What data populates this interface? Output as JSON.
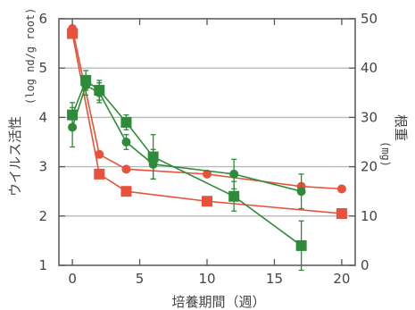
{
  "chart_data": {
    "type": "line",
    "xlabel": "培養期間（週）",
    "ylabel_left": "ウイルス活性",
    "ylabel_left_unit": "(log nd/g root)",
    "ylabel_right": "根重",
    "ylabel_right_unit": "(mg)",
    "xlim": [
      -1,
      21
    ],
    "ylim_left": [
      1,
      6
    ],
    "ylim_right": [
      0,
      50
    ],
    "x_ticks": [
      "0",
      "5",
      "10",
      "15",
      "20"
    ],
    "y_left_ticks": [
      "1",
      "2",
      "3",
      "4",
      "5",
      "6"
    ],
    "y_right_ticks": [
      "0",
      "10",
      "20",
      "30",
      "40",
      "50"
    ],
    "grid": "horizontal",
    "colors": {
      "red": "#e8513a",
      "green": "#2e8b3a"
    },
    "series": [
      {
        "axis": "left",
        "marker": "circle",
        "color": "#e8513a",
        "x": [
          0,
          2,
          4,
          10,
          17,
          20
        ],
        "y": [
          5.8,
          3.25,
          2.95,
          2.85,
          2.6,
          2.55
        ]
      },
      {
        "axis": "left",
        "marker": "square",
        "color": "#e8513a",
        "x": [
          0,
          2,
          4,
          10,
          20
        ],
        "y": [
          5.7,
          2.85,
          2.5,
          2.3,
          2.05
        ]
      },
      {
        "axis": "left",
        "marker": "circle",
        "color": "#2e8b3a",
        "x": [
          0,
          1,
          2,
          4,
          6,
          12,
          17
        ],
        "y": [
          3.8,
          4.65,
          4.5,
          3.5,
          3.05,
          2.85,
          2.5
        ],
        "err": [
          0.4,
          0.2,
          0.2,
          0.15,
          0.3,
          0.3,
          0.35
        ]
      },
      {
        "axis": "left",
        "marker": "square",
        "color": "#2e8b3a",
        "x": [
          0,
          1,
          2,
          4,
          6,
          12,
          17
        ],
        "y": [
          4.05,
          4.75,
          4.55,
          3.9,
          3.2,
          2.4,
          1.4
        ],
        "err": [
          0.25,
          0.2,
          0.2,
          0.15,
          0.45,
          0.3,
          0.5
        ]
      }
    ]
  }
}
